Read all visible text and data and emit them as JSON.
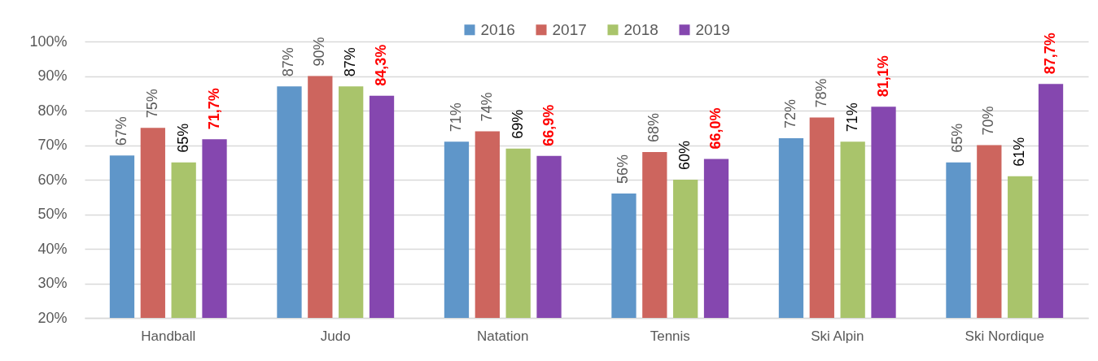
{
  "chart_data": {
    "type": "bar",
    "categories": [
      "Handball",
      "Judo",
      "Natation",
      "Tennis",
      "Ski Alpin",
      "Ski Nordique"
    ],
    "series": [
      {
        "name": "2016",
        "color": "#5f96c9",
        "values": [
          67,
          87,
          71,
          56,
          72,
          65
        ],
        "value_labels": [
          "67%",
          "87%",
          "71%",
          "56%",
          "72%",
          "65%"
        ]
      },
      {
        "name": "2017",
        "color": "#cd655e",
        "values": [
          75,
          90,
          74,
          68,
          78,
          70
        ],
        "value_labels": [
          "75%",
          "90%",
          "74%",
          "68%",
          "78%",
          "70%"
        ]
      },
      {
        "name": "2018",
        "color": "#a9c46b",
        "values": [
          65,
          87,
          69,
          60,
          71,
          61
        ],
        "value_labels": [
          "65%",
          "87%",
          "69%",
          "60%",
          "71%",
          "61%"
        ]
      },
      {
        "name": "2019",
        "color": "#8547af",
        "values": [
          71.7,
          84.3,
          66.9,
          66.0,
          81.1,
          87.7
        ],
        "value_labels": [
          "71,7%",
          "84,3%",
          "66,9%",
          "66,0%",
          "81,1%",
          "87,7%"
        ]
      }
    ],
    "ylim": [
      20,
      100
    ],
    "yticks": [
      {
        "value": 20,
        "label": "20%"
      },
      {
        "value": 30,
        "label": "30%"
      },
      {
        "value": 40,
        "label": "40%"
      },
      {
        "value": 50,
        "label": "50%"
      },
      {
        "value": 60,
        "label": "60%"
      },
      {
        "value": 70,
        "label": "70%"
      },
      {
        "value": 80,
        "label": "80%"
      },
      {
        "value": 90,
        "label": "90%"
      },
      {
        "value": 100,
        "label": "100%"
      }
    ],
    "grid": "y",
    "legend": "top"
  }
}
